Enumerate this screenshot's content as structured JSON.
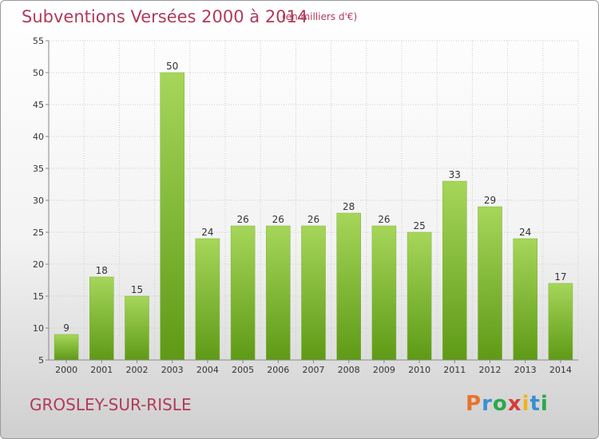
{
  "header": {
    "title": "Subventions Versées 2000 à 2014",
    "subtitle": "(en milliers d'€)"
  },
  "footer": {
    "commune": "GROSLEY-SUR-RISLE",
    "logo_text": "Proxiti",
    "logo_colors": [
      "#e8732a",
      "#3a8fd0",
      "#2aa84a",
      "#d83a3a",
      "#f2b21c",
      "#3a8fd0",
      "#2aa84a"
    ]
  },
  "chart_data": {
    "type": "bar",
    "title": "Subventions Versées 2000 à 2014",
    "subtitle": "(en milliers d'€)",
    "categories": [
      "2000",
      "2001",
      "2002",
      "2003",
      "2004",
      "2005",
      "2006",
      "2007",
      "2008",
      "2009",
      "2010",
      "2011",
      "2012",
      "2013",
      "2014"
    ],
    "values": [
      9,
      18,
      15,
      50,
      24,
      26,
      26,
      26,
      28,
      26,
      25,
      33,
      29,
      24,
      17
    ],
    "ylim": [
      5,
      55
    ],
    "yticks": [
      5,
      10,
      15,
      20,
      25,
      30,
      35,
      40,
      45,
      50,
      55
    ],
    "grid": true,
    "colors": {
      "bar_top": "#a6d65a",
      "bar_bottom": "#5e9a16",
      "grid": "#cccccc",
      "axis": "#888888"
    }
  }
}
